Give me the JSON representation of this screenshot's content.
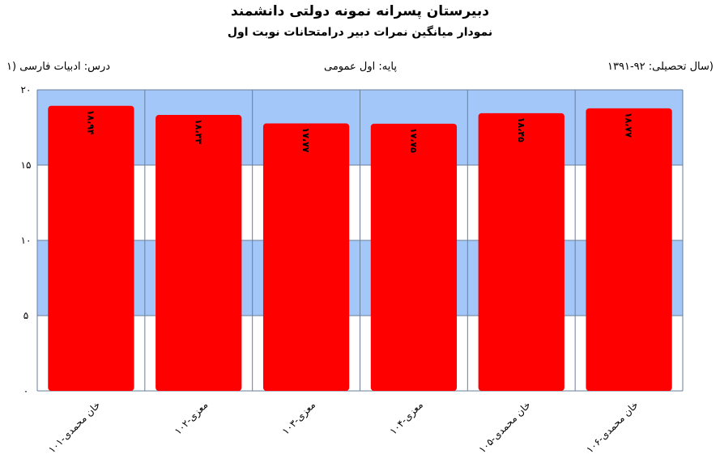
{
  "header": {
    "title": "دبیرستان پسرانه نمونه دولتی دانشمند",
    "subtitle": "نمودار میانگین نمرات دبیر درامتحانات نوبت اول",
    "lesson": "درس: ادبیات  فارسی (۱",
    "grade": "پایه: اول عمومی",
    "year": "سال تحصیلی: ۹۲-۱۳۹۱)"
  },
  "chart_data": {
    "type": "bar",
    "categories": [
      "خان محمدی-۱۰۱",
      "معزی-۱۰۲",
      "معزی-۱۰۳",
      "معزی-۱۰۴",
      "خان محمدی-۱۰۵",
      "خان محمدی-۱۰۶"
    ],
    "values": [
      18.94,
      18.33,
      17.77,
      17.75,
      18.45,
      18.77
    ],
    "value_labels": [
      "۱۸،۹۴",
      "۱۸،۳۳",
      "۱۷،۷۷",
      "۱۷،۷۵",
      "۱۸،۴۵",
      "۱۸،۷۷"
    ],
    "y_ticks": [
      "۰",
      "۵",
      "۱۰",
      "۱۵",
      "۲۰"
    ],
    "ylim": [
      0,
      20
    ],
    "grid": true,
    "colors": {
      "bar": "#ff0000",
      "band": "#a3c7f9",
      "band_alt": "#ffffff",
      "grid": "#6b7f99"
    }
  }
}
